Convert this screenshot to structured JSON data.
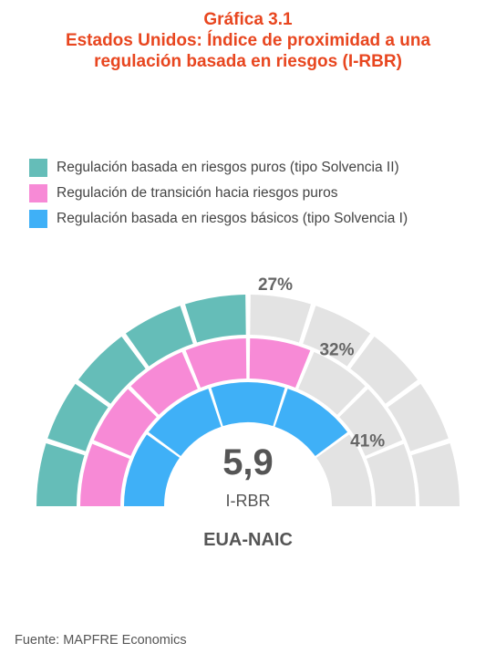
{
  "title": {
    "line1": "Gráfica 3.1",
    "line2": "Estados Unidos: Índice de proximidad a una",
    "line3": "regulación basada en riesgos (I-RBR)"
  },
  "legend": [
    {
      "label": "Regulación basada en riesgos puros (tipo Solvencia II)",
      "color": "#65bdb8"
    },
    {
      "label": "Regulación de transición hacia riesgos puros",
      "color": "#f78ad6"
    },
    {
      "label": "Regulación basada en riesgos básicos (tipo Solvencia I)",
      "color": "#3fb0f7"
    }
  ],
  "chart_data": {
    "type": "semicircular gauge",
    "index_label": "I-RBR",
    "index_value": "5,9",
    "region": "EUA-NAIC",
    "series": [
      {
        "name": "Regulación basada en riesgos puros (tipo Solvencia II)",
        "percent_label": "27%",
        "percent": 27,
        "color": "#65bdb8"
      },
      {
        "name": "Regulación de transición hacia riesgos puros",
        "percent_label": "32%",
        "percent": 32,
        "color": "#f78ad6"
      },
      {
        "name": "Regulación basada en riesgos básicos (tipo Solvencia I)",
        "percent_label": "41%",
        "percent": 41,
        "color": "#3fb0f7"
      }
    ],
    "segments_per_ring": [
      10,
      8,
      5
    ],
    "empty_color": "#e3e3e3"
  },
  "footer": "Fuente: MAPFRE Economics"
}
